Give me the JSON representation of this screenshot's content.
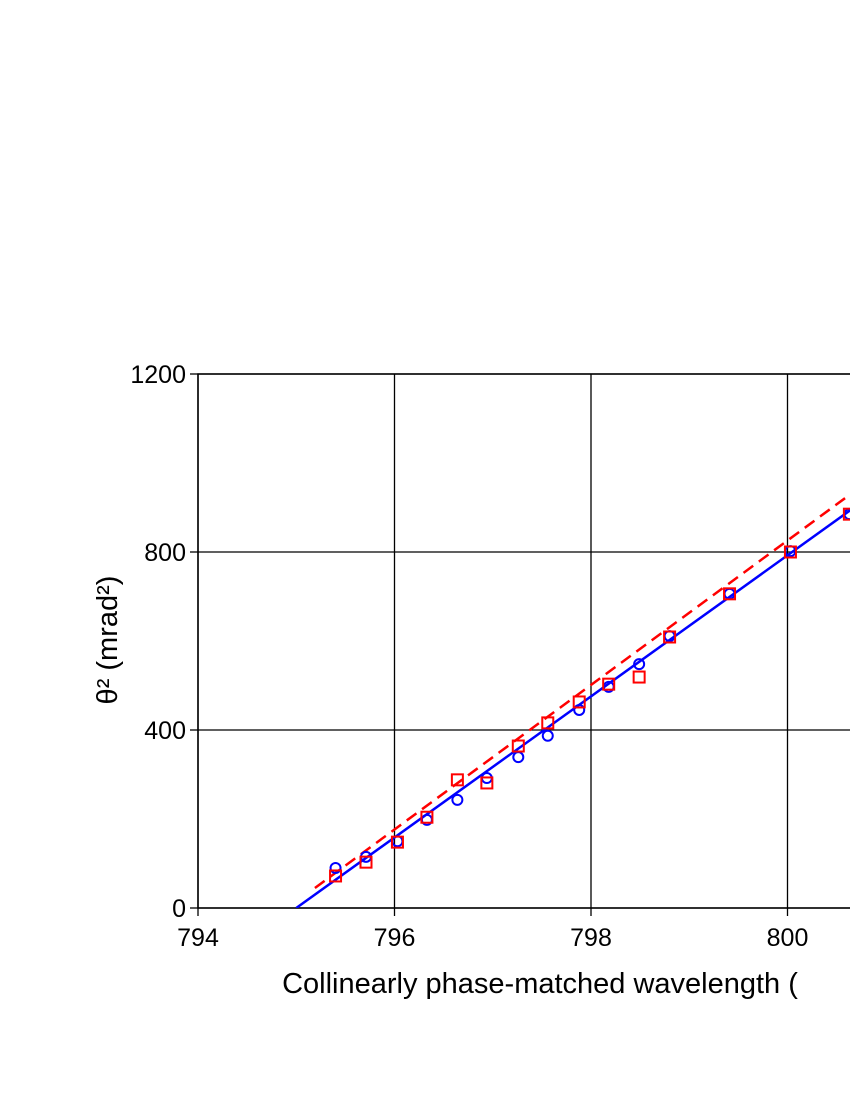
{
  "chart_data": {
    "type": "scatter",
    "xlabel": "Collinearly phase-matched wavelength (",
    "ylabel": "θ² (mrad²)",
    "xlim": [
      794,
      802
    ],
    "ylim": [
      0,
      1200
    ],
    "xticks": [
      794,
      796,
      798,
      800
    ],
    "yticks": [
      0,
      400,
      800,
      1200
    ],
    "grid": true,
    "series": [
      {
        "color": "#0000ff",
        "marker": "circle",
        "x": [
          795.4,
          795.71,
          796.03,
          796.33,
          796.64,
          796.94,
          797.26,
          797.56,
          797.88,
          798.18,
          798.49,
          798.8,
          799.41,
          800.03,
          800.63
        ],
        "values": [
          90,
          115,
          150,
          198,
          243,
          292,
          339,
          387,
          445,
          497,
          548,
          611,
          706,
          802,
          885
        ]
      },
      {
        "color": "#ff0000",
        "marker": "square",
        "x": [
          795.4,
          795.71,
          796.03,
          796.33,
          796.64,
          796.94,
          797.26,
          797.56,
          797.88,
          798.18,
          798.49,
          798.8,
          799.41,
          800.03,
          800.63
        ],
        "values": [
          72,
          103,
          148,
          204,
          288,
          281,
          364,
          416,
          463,
          503,
          519,
          609,
          706,
          800,
          885
        ]
      },
      {
        "color": "#0000ff",
        "line": "solid",
        "x": [
          795.0,
          800.64
        ],
        "values": [
          0,
          894
        ]
      },
      {
        "color": "#ff0000",
        "line": "dashed",
        "x": [
          795.19,
          800.66
        ],
        "values": [
          45,
          933
        ]
      }
    ]
  }
}
